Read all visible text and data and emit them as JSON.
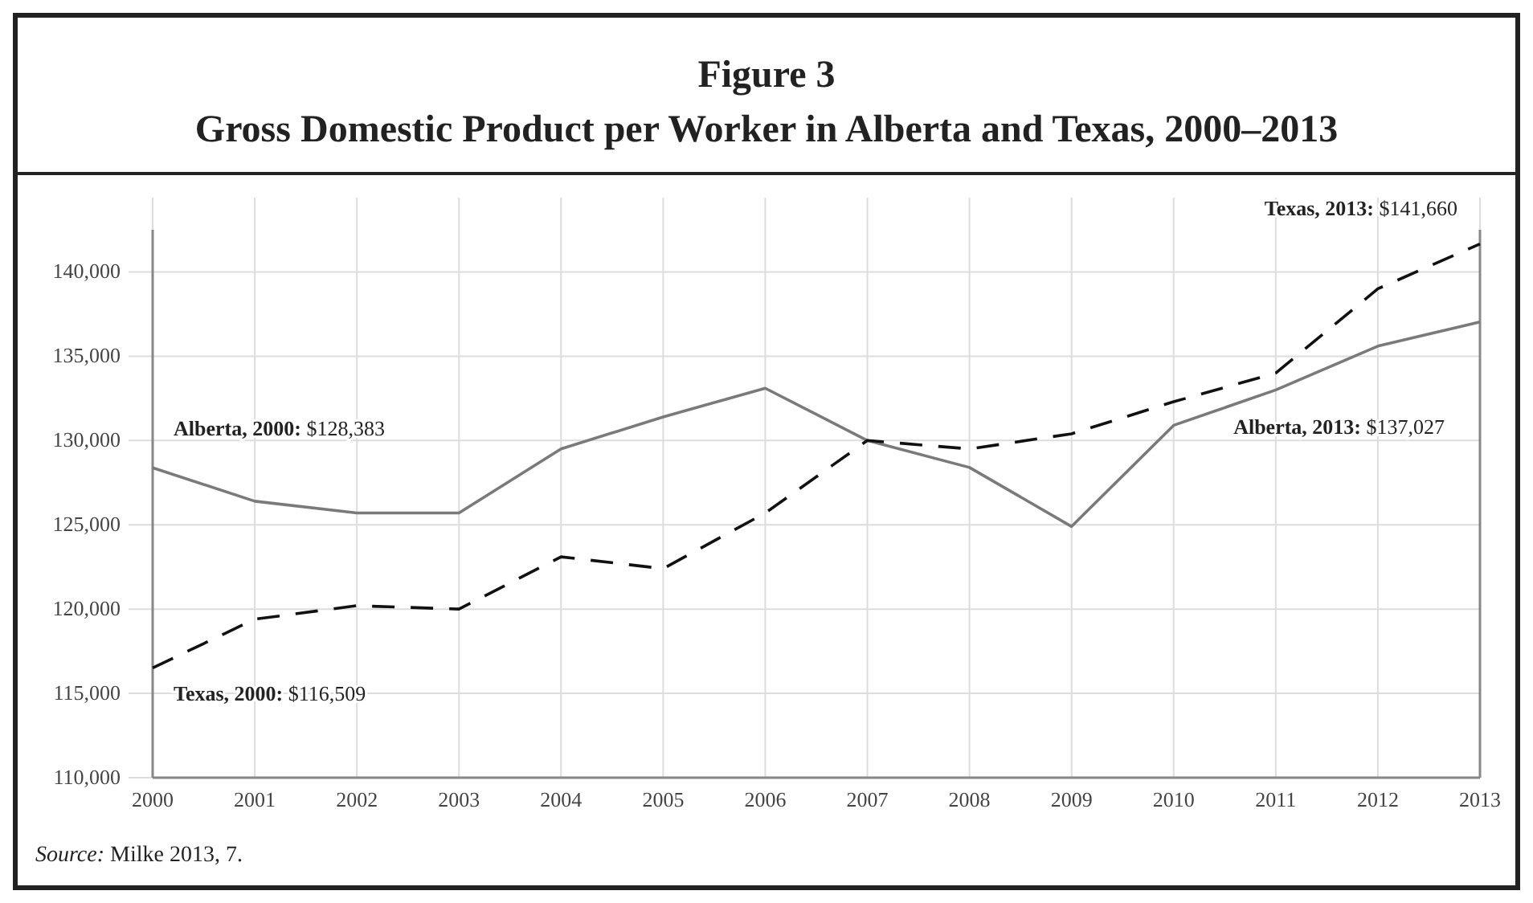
{
  "chart_data": {
    "type": "line",
    "title": "Figure 3",
    "subtitle": "Gross Domestic Product per Worker in Alberta and Texas, 2000–2013",
    "x": [
      2000,
      2001,
      2002,
      2003,
      2004,
      2005,
      2006,
      2007,
      2008,
      2009,
      2010,
      2011,
      2012,
      2013
    ],
    "xlim": [
      2000,
      2013
    ],
    "xticks": [
      2000,
      2001,
      2002,
      2003,
      2004,
      2005,
      2006,
      2007,
      2008,
      2009,
      2010,
      2011,
      2012,
      2013
    ],
    "ylim": [
      110000,
      142500
    ],
    "yticks": [
      {
        "value": 110000,
        "label": "110,000"
      },
      {
        "value": 115000,
        "label": "115,000"
      },
      {
        "value": 120000,
        "label": "120,000"
      },
      {
        "value": 125000,
        "label": "125,000"
      },
      {
        "value": 130000,
        "label": "130,000"
      },
      {
        "value": 135000,
        "label": "135,000"
      },
      {
        "value": 140000,
        "label": "140,000"
      }
    ],
    "grid": true,
    "marker": "none",
    "series": [
      {
        "color": "#7a7a7a",
        "line_style": "solid",
        "values": [
          128383,
          126400,
          125700,
          125700,
          129500,
          131400,
          133100,
          130000,
          128400,
          124900,
          130900,
          133000,
          135600,
          137027
        ]
      },
      {
        "color": "#111111",
        "line_style": "dashed",
        "values": [
          116509,
          119400,
          120200,
          120000,
          123100,
          122400,
          125700,
          130000,
          129500,
          130400,
          132300,
          134000,
          139000,
          141660
        ]
      }
    ],
    "annotations": [
      "Alberta, 2000: $128,383",
      "Texas, 2000: $116,509",
      "Alberta, 2013: $137,027",
      "Texas, 2013: $141,660",
      "Source: Milke 2013, 7."
    ]
  }
}
